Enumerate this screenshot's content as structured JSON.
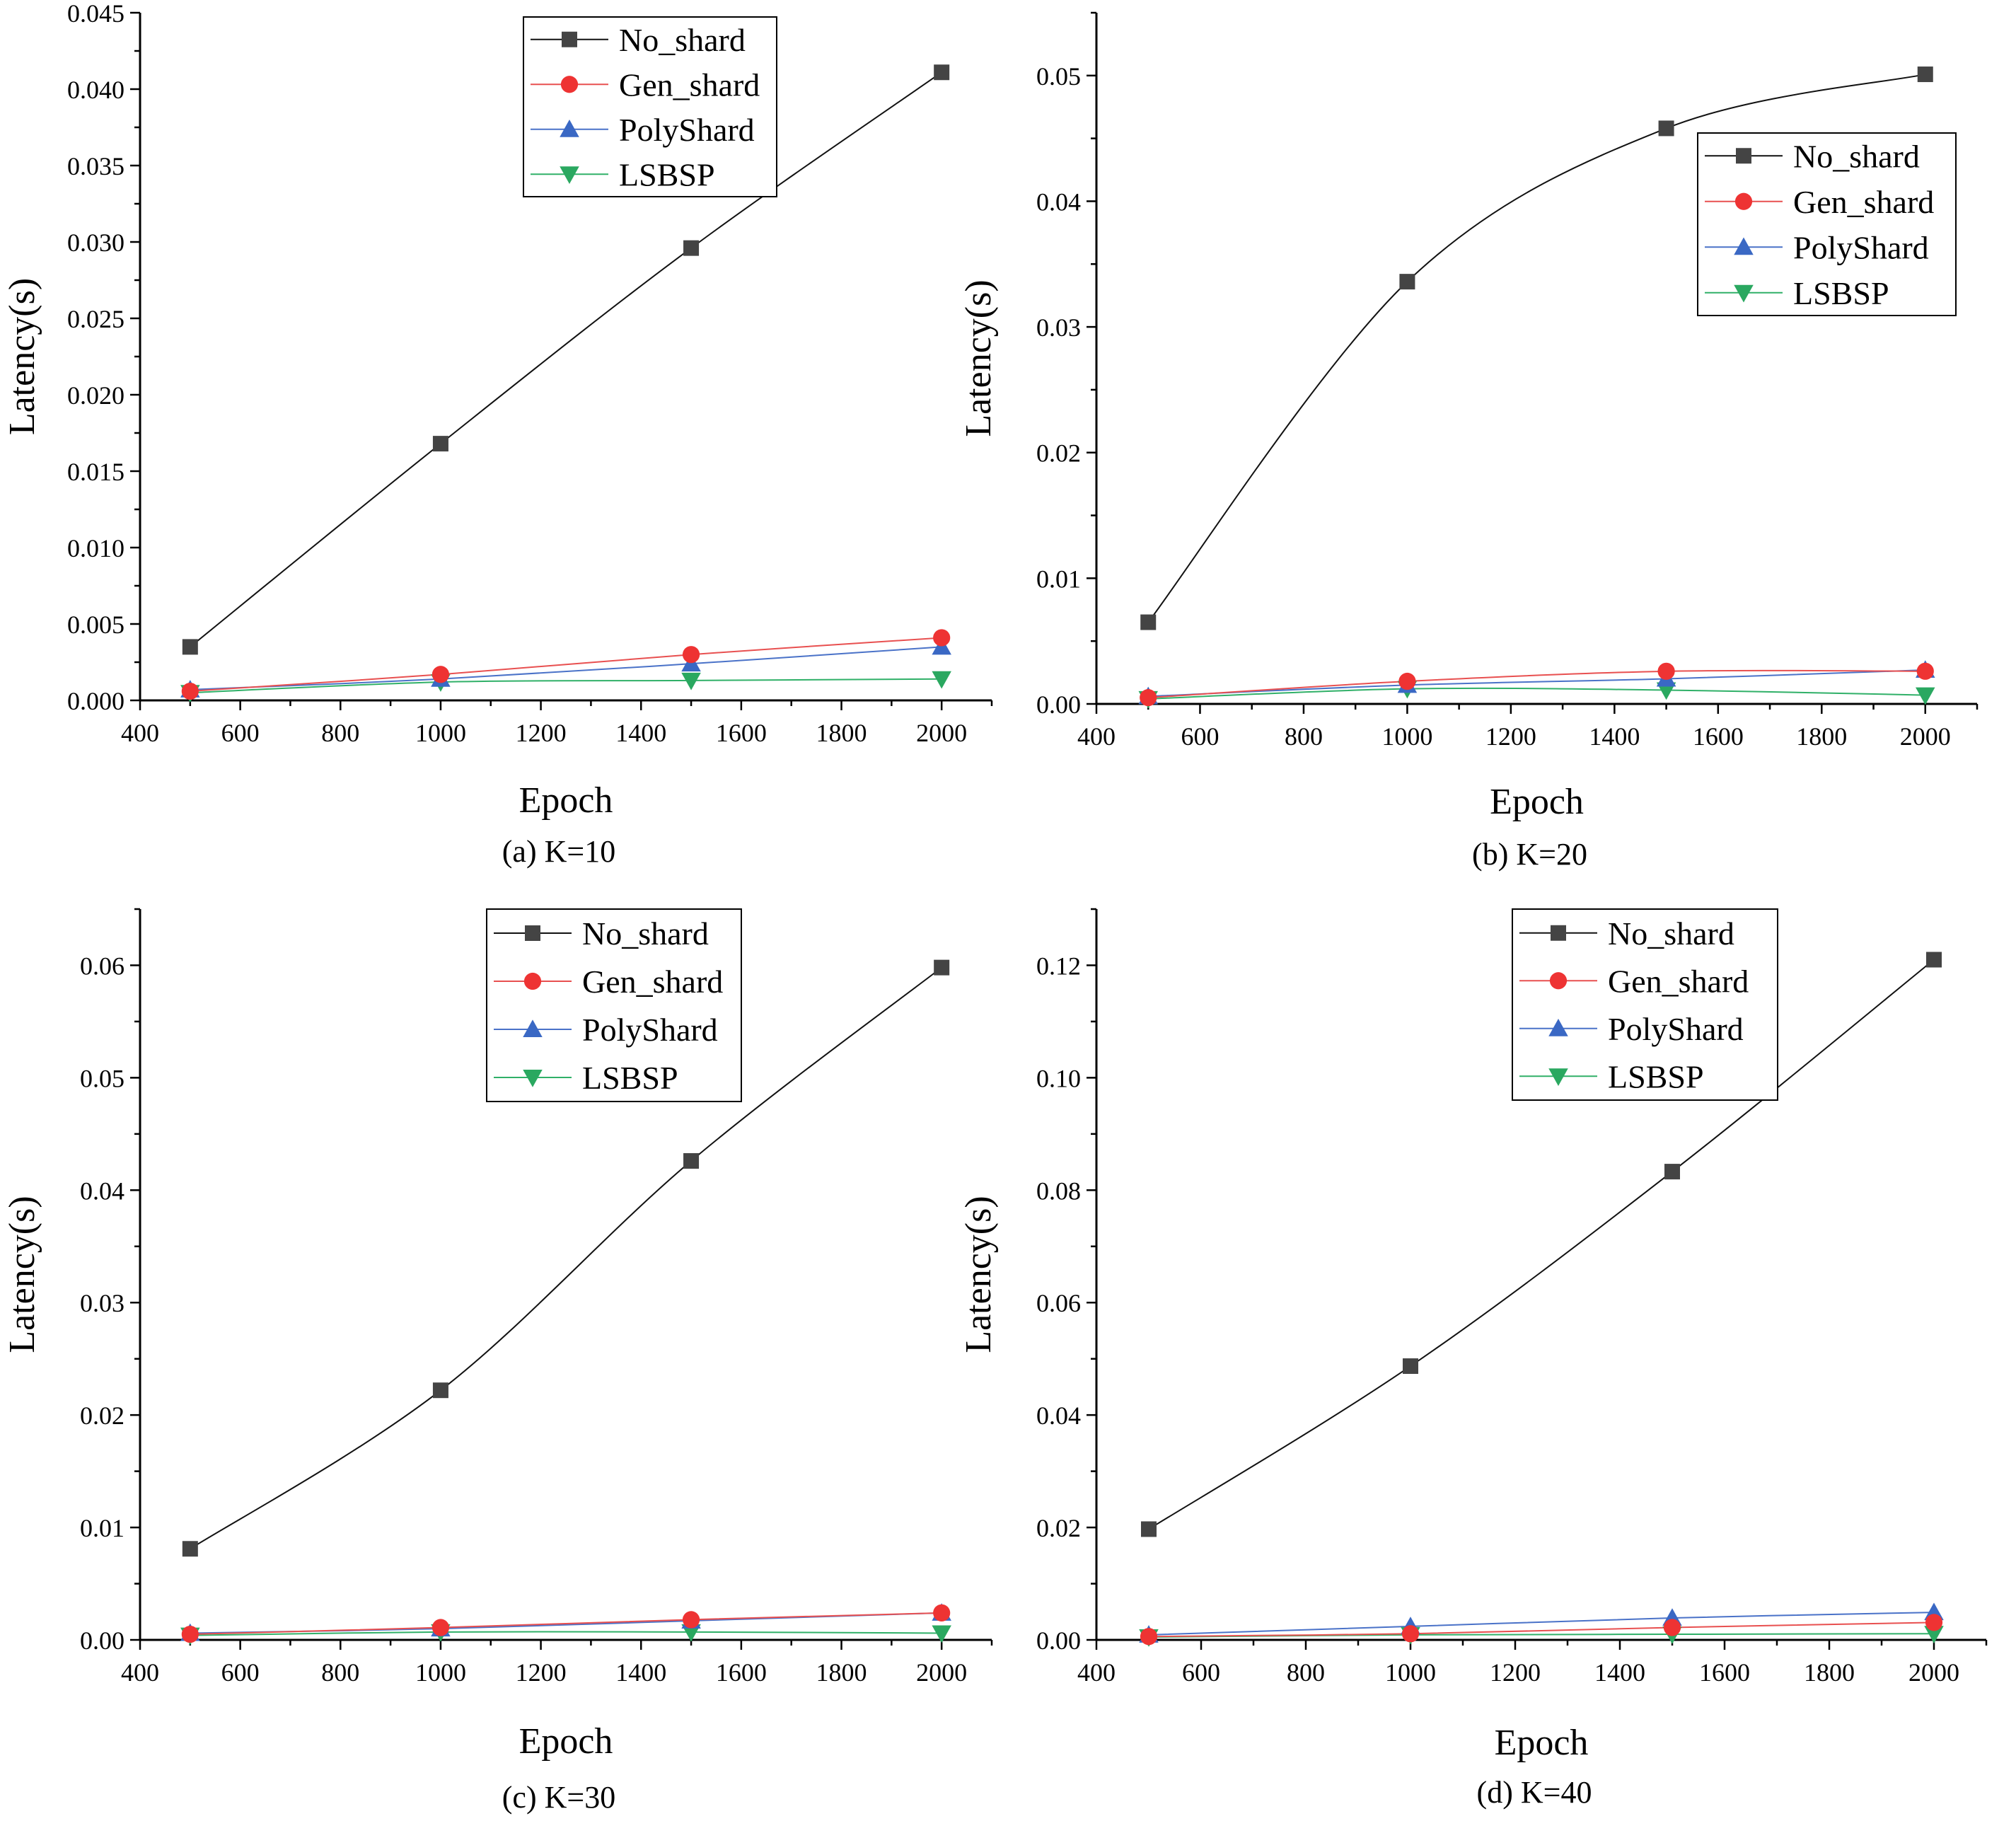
{
  "figure_title": "",
  "colors": {
    "No_shard": "#444444",
    "Gen_shard": "#ee3333",
    "PolyShard": "#3a68c4",
    "LSBSP": "#2aa860",
    "line_No_shard": "#111111",
    "line_Gen_shard": "#e85050",
    "line_PolyShard": "#4a72c8",
    "line_LSBSP": "#30b068"
  },
  "chart_data": [
    {
      "type": "line",
      "caption": "(a) K=10",
      "xlabel": "Epoch",
      "ylabel": "Latency(s)",
      "xlim": [
        400,
        2100
      ],
      "ylim": [
        0,
        0.045
      ],
      "xticks": [
        "400",
        "600",
        "800",
        "1000",
        "1200",
        "1400",
        "1600",
        "1800",
        "2000"
      ],
      "yticks": [
        "0.000",
        "0.005",
        "0.010",
        "0.015",
        "0.020",
        "0.025",
        "0.030",
        "0.035",
        "0.040",
        "0.045"
      ],
      "legend": "top-center",
      "x": [
        500,
        1000,
        1500,
        2000
      ],
      "series": [
        {
          "name": "No_shard",
          "marker": "square",
          "values": [
            0.0035,
            0.0168,
            0.0296,
            0.0411
          ]
        },
        {
          "name": "Gen_shard",
          "marker": "circle",
          "values": [
            0.0006,
            0.0017,
            0.003,
            0.0041
          ]
        },
        {
          "name": "PolyShard",
          "marker": "triangle-up",
          "values": [
            0.0007,
            0.0014,
            0.0024,
            0.0035
          ]
        },
        {
          "name": "LSBSP",
          "marker": "triangle-down",
          "values": [
            0.0005,
            0.0012,
            0.0013,
            0.0014
          ]
        }
      ]
    },
    {
      "type": "line",
      "caption": "(b) K=20",
      "xlabel": "Epoch",
      "ylabel": "Latency(s)",
      "xlim": [
        400,
        2100
      ],
      "ylim": [
        0,
        0.055
      ],
      "xticks": [
        "400",
        "600",
        "800",
        "1000",
        "1200",
        "1400",
        "1600",
        "1800",
        "2000"
      ],
      "yticks": [
        "0.00",
        "0.01",
        "0.02",
        "0.03",
        "0.04",
        "0.05"
      ],
      "legend": "top-right",
      "x": [
        500,
        1000,
        1500,
        2000
      ],
      "series": [
        {
          "name": "No_shard",
          "marker": "square",
          "values": [
            0.0065,
            0.0336,
            0.0458,
            0.0501
          ]
        },
        {
          "name": "Gen_shard",
          "marker": "circle",
          "values": [
            0.0005,
            0.0018,
            0.0026,
            0.0026
          ]
        },
        {
          "name": "PolyShard",
          "marker": "triangle-up",
          "values": [
            0.0006,
            0.0015,
            0.002,
            0.0027
          ]
        },
        {
          "name": "LSBSP",
          "marker": "triangle-down",
          "values": [
            0.0004,
            0.0012,
            0.0011,
            0.0007
          ]
        }
      ]
    },
    {
      "type": "line",
      "caption": "(c) K=30",
      "xlabel": "Epoch",
      "ylabel": "Latency(s)",
      "xlim": [
        400,
        2100
      ],
      "ylim": [
        0,
        0.065
      ],
      "xticks": [
        "400",
        "600",
        "800",
        "1000",
        "1200",
        "1400",
        "1600",
        "1800",
        "2000"
      ],
      "yticks": [
        "0.00",
        "0.01",
        "0.02",
        "0.03",
        "0.04",
        "0.05",
        "0.06"
      ],
      "legend": "top-center",
      "x": [
        500,
        1000,
        1500,
        2000
      ],
      "series": [
        {
          "name": "No_shard",
          "marker": "square",
          "values": [
            0.0081,
            0.0222,
            0.0426,
            0.0598
          ]
        },
        {
          "name": "Gen_shard",
          "marker": "circle",
          "values": [
            0.0005,
            0.0011,
            0.0018,
            0.0024
          ]
        },
        {
          "name": "PolyShard",
          "marker": "triangle-up",
          "values": [
            0.0006,
            0.001,
            0.0017,
            0.0024
          ]
        },
        {
          "name": "LSBSP",
          "marker": "triangle-down",
          "values": [
            0.0004,
            0.0007,
            0.0007,
            0.0006
          ]
        }
      ]
    },
    {
      "type": "line",
      "caption": "(d) K=40",
      "xlabel": "Epoch",
      "ylabel": "Latency(s)",
      "xlim": [
        400,
        2100
      ],
      "ylim": [
        0,
        0.13
      ],
      "xticks": [
        "400",
        "600",
        "800",
        "1000",
        "1200",
        "1400",
        "1600",
        "1800",
        "2000"
      ],
      "yticks": [
        "0.00",
        "0.02",
        "0.04",
        "0.06",
        "0.08",
        "0.10",
        "0.12"
      ],
      "legend": "top-right",
      "x": [
        500,
        1000,
        1500,
        2000
      ],
      "series": [
        {
          "name": "No_shard",
          "marker": "square",
          "values": [
            0.0197,
            0.0487,
            0.0833,
            0.121
          ]
        },
        {
          "name": "Gen_shard",
          "marker": "circle",
          "values": [
            0.0006,
            0.0011,
            0.0022,
            0.0031
          ]
        },
        {
          "name": "PolyShard",
          "marker": "triangle-up",
          "values": [
            0.0009,
            0.0024,
            0.0039,
            0.0049
          ]
        },
        {
          "name": "LSBSP",
          "marker": "triangle-down",
          "values": [
            0.0005,
            0.0009,
            0.001,
            0.0011
          ]
        }
      ]
    }
  ]
}
